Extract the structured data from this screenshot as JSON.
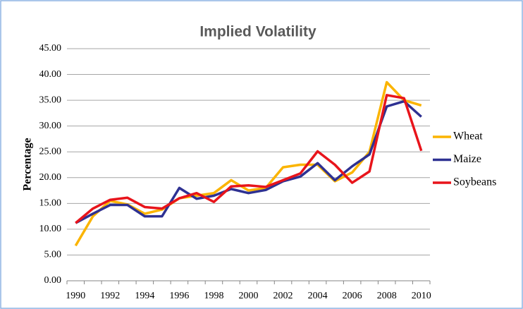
{
  "chart_data": {
    "type": "line",
    "title": "Implied Volatility",
    "y_label": "Percentage",
    "categories": [
      "1990",
      null,
      "1992",
      null,
      "1994",
      null,
      "1996",
      null,
      "1998",
      null,
      "2000",
      null,
      "2002",
      null,
      "2004",
      null,
      "2006",
      null,
      "2008",
      null,
      "2010"
    ],
    "series": [
      {
        "name": "Wheat",
        "color": "#fbb400",
        "values": [
          6.8,
          12.5,
          15.5,
          14.8,
          13.0,
          13.8,
          16.0,
          16.5,
          17.0,
          19.5,
          17.5,
          18.0,
          22.0,
          22.5,
          22.5,
          19.3,
          21.0,
          25.0,
          38.5,
          35.0,
          34.0
        ]
      },
      {
        "name": "Maize",
        "color": "#2e3192",
        "values": [
          11.2,
          13.0,
          14.7,
          14.7,
          12.5,
          12.5,
          18.0,
          15.9,
          16.5,
          17.8,
          17.0,
          17.6,
          19.3,
          20.2,
          22.8,
          19.5,
          22.2,
          24.5,
          33.8,
          34.8,
          31.8
        ]
      },
      {
        "name": "Soybeans",
        "color": "#e8141b",
        "values": [
          11.2,
          14.0,
          15.7,
          16.1,
          14.3,
          14.0,
          16.0,
          17.0,
          15.3,
          18.3,
          18.5,
          18.2,
          19.5,
          20.8,
          25.1,
          22.5,
          19.0,
          21.2,
          36.0,
          35.4,
          25.2
        ]
      }
    ],
    "ylim": [
      0,
      45
    ],
    "yticks": [
      {
        "value": 0,
        "label": "0.00"
      },
      {
        "value": 5,
        "label": "5.00"
      },
      {
        "value": 10,
        "label": "10.00"
      },
      {
        "value": 15,
        "label": "15.00"
      },
      {
        "value": 20,
        "label": "20.00"
      },
      {
        "value": 25,
        "label": "25.00"
      },
      {
        "value": 30,
        "label": "30.00"
      },
      {
        "value": 35,
        "label": "35.00"
      },
      {
        "value": 40,
        "label": "40.00"
      },
      {
        "value": 45,
        "label": "45.00"
      }
    ],
    "grid": true,
    "legend": "right"
  }
}
